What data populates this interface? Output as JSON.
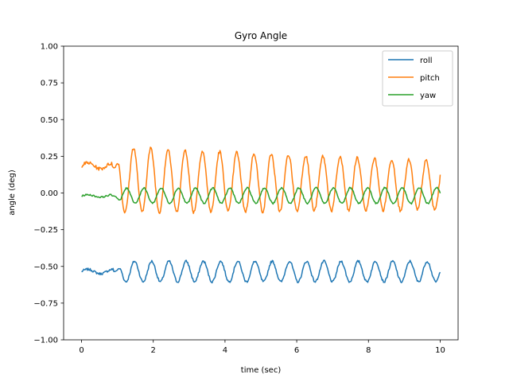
{
  "chart_data": {
    "type": "line",
    "title": "Gyro Angle",
    "xlabel": "time (sec)",
    "ylabel": "angle (deg)",
    "xlim": [
      -0.5,
      10.5
    ],
    "ylim": [
      -1.0,
      1.0
    ],
    "xticks": [
      0,
      2,
      4,
      6,
      8,
      10
    ],
    "xtick_labels": [
      "0",
      "2",
      "4",
      "6",
      "8",
      "10"
    ],
    "yticks": [
      -1.0,
      -0.75,
      -0.5,
      -0.25,
      0.0,
      0.25,
      0.5,
      0.75,
      1.0
    ],
    "ytick_labels": [
      "−1.00",
      "−0.75",
      "−0.50",
      "−0.25",
      "0.00",
      "0.25",
      "0.50",
      "0.75",
      "1.00"
    ],
    "grid": false,
    "legend_position": "top-right",
    "series": [
      {
        "name": "roll",
        "color": "#1f77b4",
        "model": {
          "t_start": 0,
          "t_end": 10,
          "settle": 0.9,
          "pre_level": -0.535,
          "pre_amp": 0.015,
          "base": -0.535,
          "base_drift": 0.0,
          "amp": 0.07,
          "amp_drift": 0.0,
          "period": 0.48,
          "phase": 0.3,
          "noise": 0.008
        }
      },
      {
        "name": "pitch",
        "color": "#ff7f0e",
        "model": {
          "t_start": 0,
          "t_end": 10,
          "settle": 0.85,
          "pre_level": 0.185,
          "pre_amp": 0.02,
          "base": 0.09,
          "base_drift": -0.04,
          "amp": 0.225,
          "amp_drift": -0.06,
          "period": 0.48,
          "phase": 0.0,
          "noise": 0.012
        }
      },
      {
        "name": "yaw",
        "color": "#2ca02c",
        "model": {
          "t_start": 0,
          "t_end": 10,
          "settle": 0.85,
          "pre_level": -0.02,
          "pre_amp": 0.008,
          "base": -0.018,
          "base_drift": 0.0,
          "amp": 0.05,
          "amp_drift": 0.005,
          "period": 0.48,
          "phase": 2.5,
          "noise": 0.005
        }
      }
    ]
  }
}
